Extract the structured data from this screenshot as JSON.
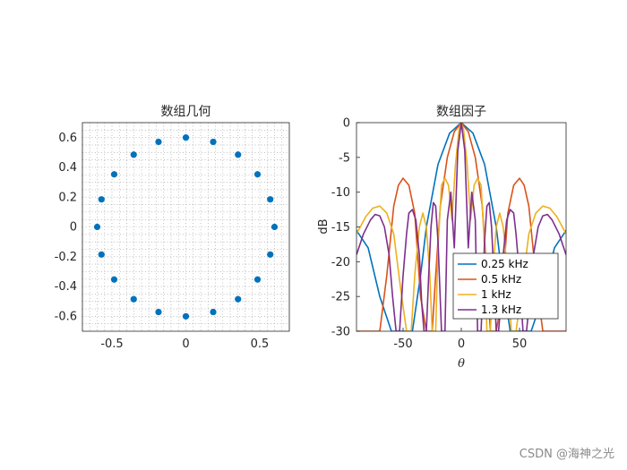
{
  "chart_data": [
    {
      "type": "scatter",
      "title": "数组几何",
      "xlim": [
        -0.7,
        0.7
      ],
      "ylim": [
        -0.7,
        0.7
      ],
      "xticks": [
        "-0.5",
        "0",
        "0.5"
      ],
      "yticks": [
        "0.6",
        "0.4",
        "0.2",
        "0",
        "-0.2",
        "-0.4",
        "-0.6"
      ],
      "grid": "minor-dotted",
      "marker_color": "#0072BD",
      "points": [
        {
          "x": 0.6,
          "y": 0.0
        },
        {
          "x": 0.571,
          "y": 0.185
        },
        {
          "x": 0.485,
          "y": 0.353
        },
        {
          "x": 0.353,
          "y": 0.485
        },
        {
          "x": 0.185,
          "y": 0.571
        },
        {
          "x": 0.0,
          "y": 0.6
        },
        {
          "x": -0.185,
          "y": 0.571
        },
        {
          "x": -0.353,
          "y": 0.485
        },
        {
          "x": -0.485,
          "y": 0.353
        },
        {
          "x": -0.571,
          "y": 0.185
        },
        {
          "x": -0.6,
          "y": 0.0
        },
        {
          "x": -0.571,
          "y": -0.185
        },
        {
          "x": -0.485,
          "y": -0.353
        },
        {
          "x": -0.353,
          "y": -0.485
        },
        {
          "x": -0.185,
          "y": -0.571
        },
        {
          "x": 0.0,
          "y": -0.6
        },
        {
          "x": 0.185,
          "y": -0.571
        },
        {
          "x": 0.353,
          "y": -0.485
        },
        {
          "x": 0.485,
          "y": -0.353
        },
        {
          "x": 0.571,
          "y": -0.185
        }
      ]
    },
    {
      "type": "line",
      "title": "数组因子",
      "xlabel": "θ",
      "ylabel": "dB",
      "xlim": [
        -90,
        90
      ],
      "ylim": [
        -30,
        0
      ],
      "xticks": [
        "-50",
        "0",
        "50"
      ],
      "yticks": [
        "0",
        "-5",
        "-10",
        "-15",
        "-20",
        "-25",
        "-30"
      ],
      "legend_position": "bottom-right",
      "series": [
        {
          "name": "0.25 kHz",
          "color": "#0072BD",
          "x": [
            -90,
            -80,
            -70,
            -60,
            -50,
            -42,
            -35,
            -30,
            -20,
            -10,
            0,
            10,
            20,
            30,
            35,
            42,
            50,
            60,
            70,
            80,
            90
          ],
          "y": [
            -15.5,
            -18,
            -25,
            -30,
            -30,
            -30,
            -22,
            -15,
            -6,
            -1.5,
            0,
            -1.5,
            -6,
            -15,
            -22,
            -30,
            -30,
            -30,
            -25,
            -18,
            -15.5
          ]
        },
        {
          "name": "0.5 kHz",
          "color": "#D95319",
          "x": [
            -90,
            -85,
            -80,
            -75,
            -70,
            -64,
            -58,
            -54,
            -50,
            -45,
            -40,
            -35,
            -30,
            -25,
            -22,
            -18,
            -12,
            -6,
            0,
            6,
            12,
            18,
            22,
            25,
            30,
            35,
            40,
            45,
            50,
            54,
            58,
            64,
            70,
            75,
            80,
            85,
            90
          ],
          "y": [
            -30,
            -30,
            -30,
            -30,
            -30,
            -22,
            -12,
            -9,
            -8,
            -9,
            -13,
            -25,
            -30,
            -30,
            -22,
            -12,
            -5,
            -1.3,
            0,
            -1.3,
            -5,
            -12,
            -22,
            -30,
            -30,
            -25,
            -13,
            -9,
            -8,
            -9,
            -12,
            -22,
            -30,
            -30,
            -30,
            -30,
            -30
          ]
        },
        {
          "name": "1 kHz",
          "color": "#EDB120",
          "x": [
            -90,
            -82,
            -76,
            -70,
            -64,
            -58,
            -52,
            -47,
            -43,
            -40,
            -36,
            -33,
            -30,
            -27,
            -25,
            -22,
            -20,
            -17,
            -14,
            -11,
            -8,
            -5,
            -2,
            0,
            2,
            5,
            8,
            11,
            14,
            17,
            20,
            22,
            25,
            27,
            30,
            33,
            36,
            40,
            43,
            47,
            52,
            58,
            64,
            70,
            76,
            82,
            90
          ],
          "y": [
            -16,
            -13.5,
            -12.3,
            -12,
            -13,
            -16,
            -24,
            -30,
            -30,
            -22,
            -15,
            -13,
            -15,
            -22,
            -30,
            -30,
            -18,
            -9,
            -8,
            -9,
            -14,
            -6,
            -1,
            0,
            -1,
            -6,
            -14,
            -9,
            -8,
            -9,
            -18,
            -30,
            -30,
            -22,
            -15,
            -13,
            -15,
            -22,
            -30,
            -30,
            -24,
            -16,
            -13,
            -12,
            -12.3,
            -13.5,
            -16
          ]
        },
        {
          "name": "1.3 kHz",
          "color": "#7E2F8E",
          "x": [
            -90,
            -84,
            -78,
            -74,
            -70,
            -66,
            -62,
            -59,
            -56,
            -53,
            -50,
            -47,
            -45,
            -42,
            -39,
            -36,
            -34,
            -32,
            -30,
            -28,
            -26,
            -24,
            -22,
            -20,
            -17,
            -14,
            -12,
            -9,
            -6,
            -3,
            0,
            3,
            6,
            9,
            12,
            14,
            17,
            20,
            22,
            24,
            26,
            28,
            30,
            32,
            34,
            36,
            39,
            42,
            45,
            47,
            50,
            53,
            56,
            59,
            62,
            66,
            70,
            74,
            78,
            84,
            90
          ],
          "y": [
            -19,
            -16,
            -14,
            -13.2,
            -13.4,
            -15,
            -19,
            -25,
            -30,
            -30,
            -22,
            -16,
            -13,
            -12.5,
            -14,
            -19,
            -26,
            -30,
            -30,
            -22,
            -15,
            -11.5,
            -12,
            -17,
            -30,
            -30,
            -14,
            -10,
            -18,
            -4,
            0,
            -4,
            -18,
            -10,
            -14,
            -30,
            -30,
            -17,
            -12,
            -11.5,
            -15,
            -22,
            -30,
            -30,
            -26,
            -19,
            -14,
            -12.5,
            -13,
            -16,
            -22,
            -30,
            -30,
            -25,
            -19,
            -15,
            -13.4,
            -13.2,
            -14,
            -16,
            -19
          ]
        }
      ]
    }
  ],
  "watermark": "CSDN @海神之光"
}
